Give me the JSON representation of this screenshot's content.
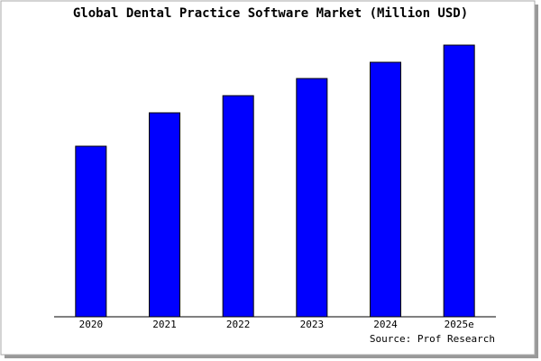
{
  "chart_data": {
    "type": "bar",
    "title": "Global Dental Practice Software Market (Million USD)",
    "categories": [
      "2020",
      "2021",
      "2022",
      "2023",
      "2024",
      "2025e"
    ],
    "values": [
      189,
      226,
      245,
      264,
      282,
      301
    ],
    "color": "#0000ff",
    "ylim": [
      0,
      303
    ],
    "source": "Source: Prof Research"
  }
}
